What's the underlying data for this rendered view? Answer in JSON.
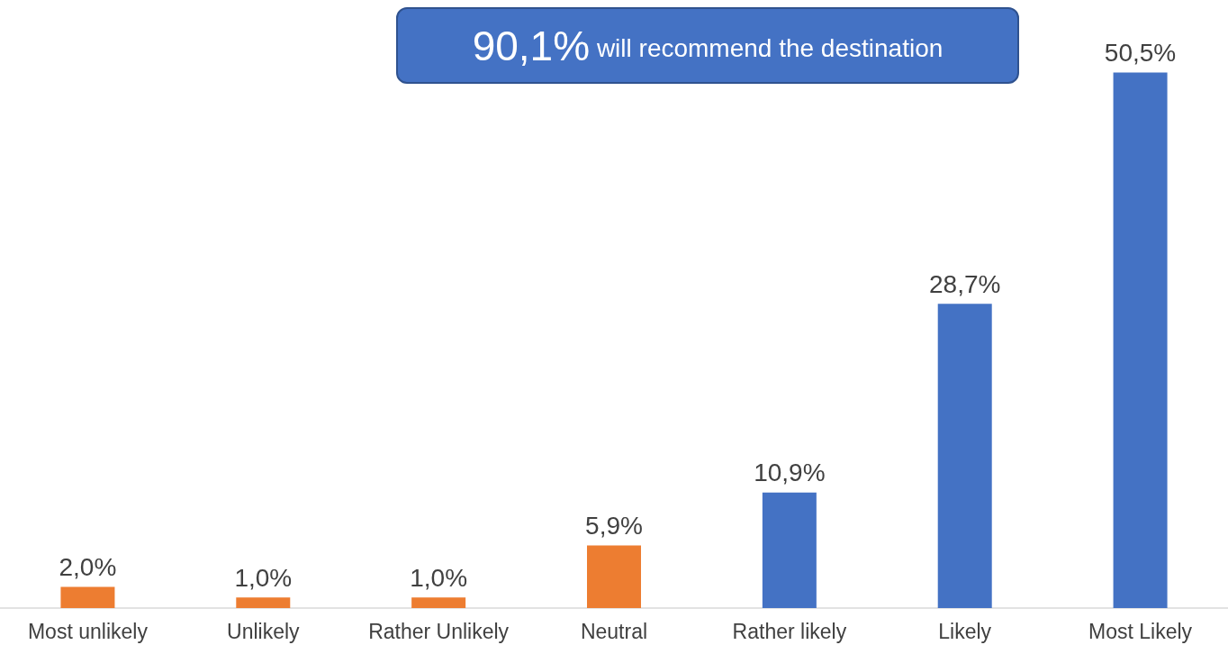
{
  "chart_data": {
    "type": "bar",
    "categories": [
      "Most unlikely",
      "Unlikely",
      "Rather Unlikely",
      "Neutral",
      "Rather likely",
      "Likely",
      "Most Likely"
    ],
    "values": [
      2.0,
      1.0,
      1.0,
      5.9,
      10.9,
      28.7,
      50.5
    ],
    "colors": [
      "#ed7d31",
      "#ed7d31",
      "#ed7d31",
      "#ed7d31",
      "#4472c4",
      "#4472c4",
      "#4472c4"
    ],
    "value_labels": [
      "2,0%",
      "1,0%",
      "1,0%",
      "5,9%",
      "10,9%",
      "28,7%",
      "50,5%"
    ],
    "annotations": [
      "90,1% will recommend the destination"
    ],
    "data_labels": false
  }
}
